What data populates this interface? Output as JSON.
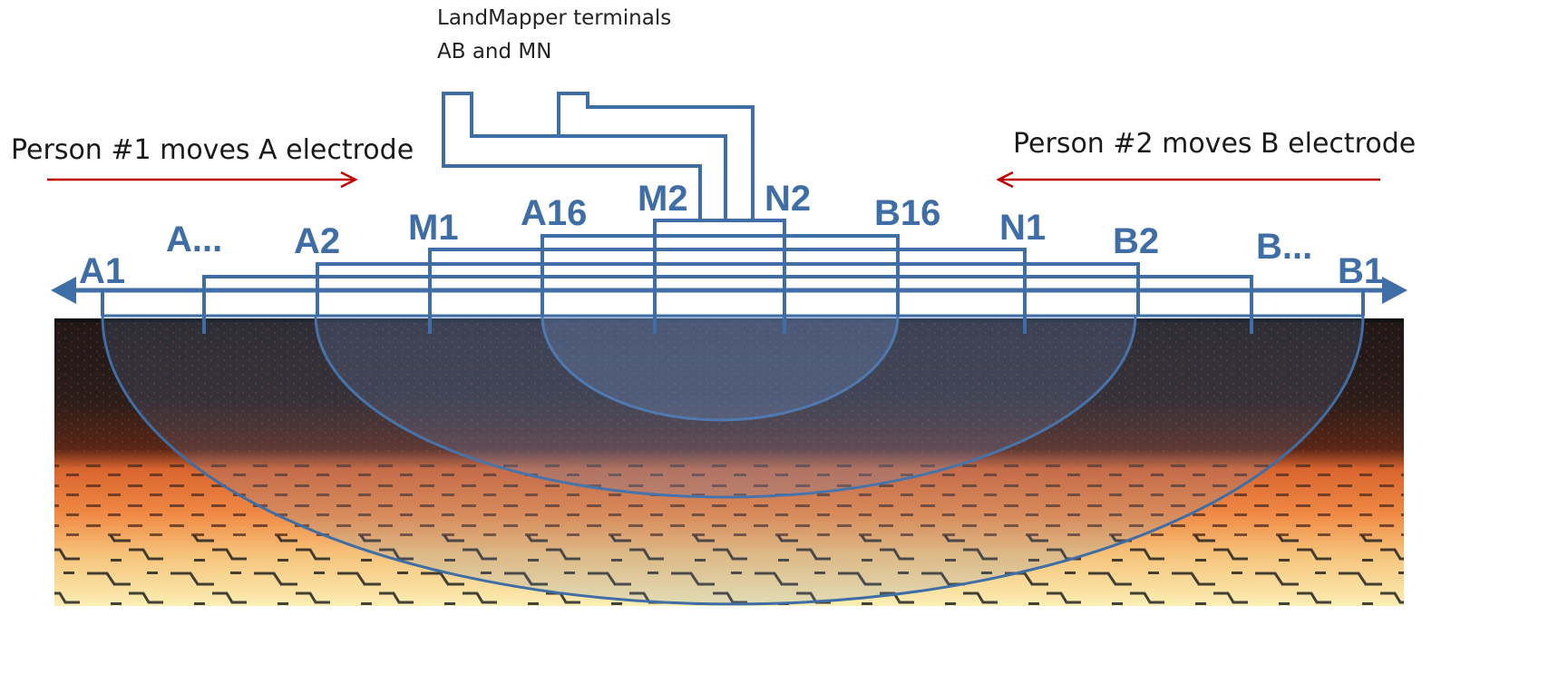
{
  "terminals": {
    "line1": "LandMapper terminals",
    "line2": "AB  and  MN"
  },
  "person1": {
    "text": "Person #1 moves A electrode"
  },
  "person2": {
    "text": "Person #2 moves B electrode"
  },
  "electrodes": {
    "A1": "A1",
    "A_more": "A...",
    "A2": "A2",
    "M1": "M1",
    "A16": "A16",
    "M2": "M2",
    "N2": "N2",
    "B16": "B16",
    "N1": "N1",
    "B2": "B2",
    "B_more": "B...",
    "B1": "B1"
  },
  "colors": {
    "wire": "#3e6ea5",
    "arrow": "#c00000",
    "topsoil": "#2a1e1c",
    "subsoil": "#e2733c",
    "deep": "#f7e8a8"
  }
}
